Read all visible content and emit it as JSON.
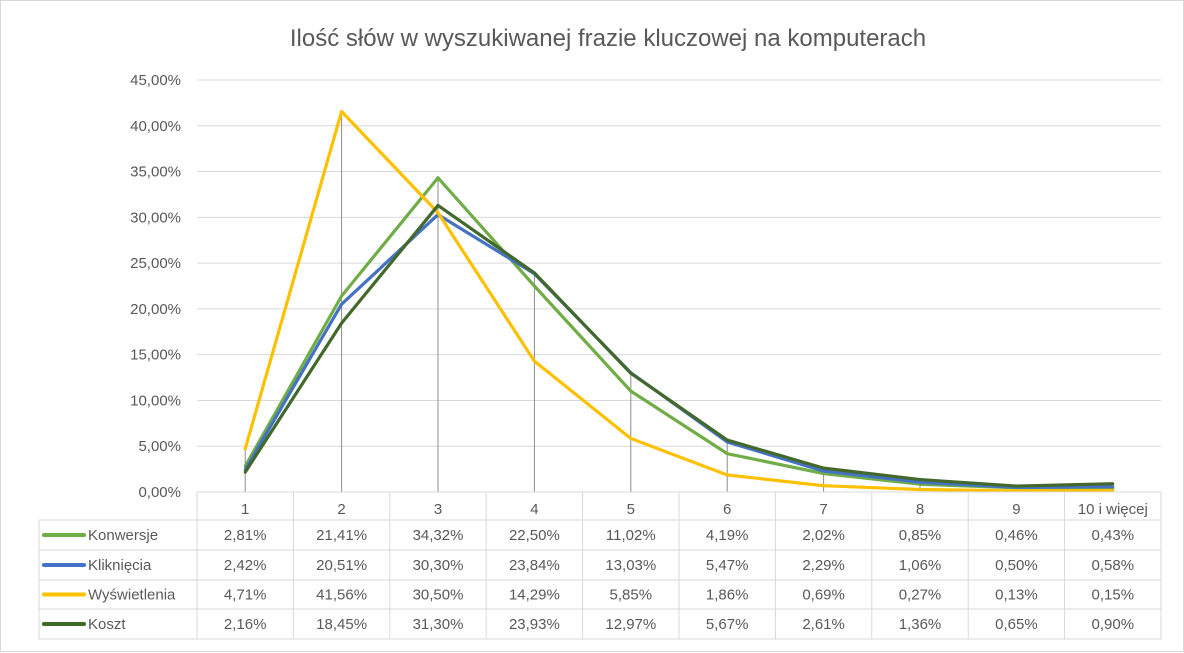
{
  "chart_data": {
    "type": "line",
    "title": "Ilość słów w wyszukiwanej frazie kluczowej na komputerach",
    "xlabel": "",
    "ylabel": "",
    "categories": [
      "1",
      "2",
      "3",
      "4",
      "5",
      "6",
      "7",
      "8",
      "9",
      "10 i więcej"
    ],
    "ylim": [
      0,
      45
    ],
    "yticks": [
      "0,00%",
      "5,00%",
      "10,00%",
      "15,00%",
      "20,00%",
      "25,00%",
      "30,00%",
      "35,00%",
      "40,00%",
      "45,00%"
    ],
    "grid": true,
    "drop_lines": true,
    "legend": "data-table-bottom",
    "series": [
      {
        "name": "Konwersje",
        "color": "#70AD47",
        "values": [
          2.81,
          21.41,
          34.32,
          22.5,
          11.02,
          4.19,
          2.02,
          0.85,
          0.46,
          0.43
        ],
        "labels": [
          "2,81%",
          "21,41%",
          "34,32%",
          "22,50%",
          "11,02%",
          "4,19%",
          "2,02%",
          "0,85%",
          "0,46%",
          "0,43%"
        ]
      },
      {
        "name": "Kliknięcia",
        "color": "#4472C4",
        "values": [
          2.42,
          20.51,
          30.3,
          23.84,
          13.03,
          5.47,
          2.29,
          1.06,
          0.5,
          0.58
        ],
        "labels": [
          "2,42%",
          "20,51%",
          "30,30%",
          "23,84%",
          "13,03%",
          "5,47%",
          "2,29%",
          "1,06%",
          "0,50%",
          "0,58%"
        ]
      },
      {
        "name": "Wyświetlenia",
        "color": "#FFC000",
        "values": [
          4.71,
          41.56,
          30.5,
          14.29,
          5.85,
          1.86,
          0.69,
          0.27,
          0.13,
          0.15
        ],
        "labels": [
          "4,71%",
          "41,56%",
          "30,50%",
          "14,29%",
          "5,85%",
          "1,86%",
          "0,69%",
          "0,27%",
          "0,13%",
          "0,15%"
        ]
      },
      {
        "name": "Koszt",
        "color": "#43682B",
        "values": [
          2.16,
          18.45,
          31.3,
          23.93,
          12.97,
          5.67,
          2.61,
          1.36,
          0.65,
          0.9
        ],
        "labels": [
          "2,16%",
          "18,45%",
          "31,30%",
          "23,93%",
          "12,97%",
          "5,67%",
          "2,61%",
          "1,36%",
          "0,65%",
          "0,90%"
        ]
      }
    ]
  }
}
